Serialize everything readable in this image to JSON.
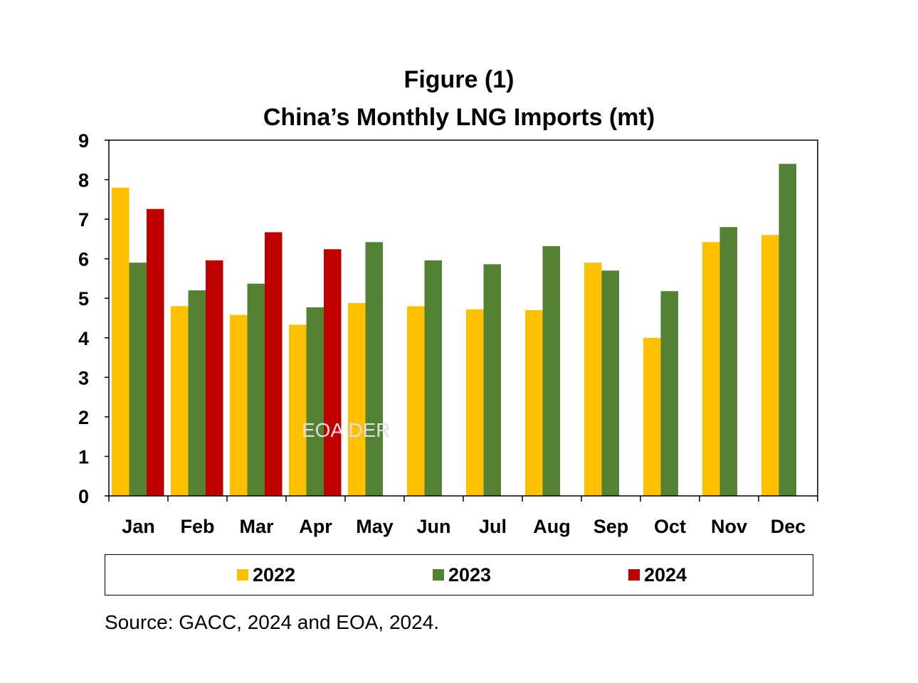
{
  "chart_data": {
    "type": "bar",
    "title": "Figure (1)",
    "subtitle": "China’s Monthly LNG Imports (mt)",
    "categories": [
      "Jan",
      "Feb",
      "Mar",
      "Apr",
      "May",
      "Jun",
      "Jul",
      "Aug",
      "Sep",
      "Oct",
      "Nov",
      "Dec"
    ],
    "series": [
      {
        "name": "2022",
        "color": "#ffc000",
        "values": [
          7.8,
          4.8,
          4.58,
          4.33,
          4.88,
          4.8,
          4.72,
          4.7,
          5.9,
          4.0,
          6.42,
          6.6
        ]
      },
      {
        "name": "2023",
        "color": "#548235",
        "values": [
          5.9,
          5.2,
          5.37,
          4.77,
          6.42,
          5.96,
          5.86,
          6.32,
          5.7,
          5.18,
          6.8,
          8.4
        ]
      },
      {
        "name": "2024",
        "color": "#c00000",
        "values": [
          7.26,
          5.96,
          6.67,
          6.24,
          null,
          null,
          null,
          null,
          null,
          null,
          null,
          null
        ]
      }
    ],
    "ylim": [
      0,
      9
    ],
    "yticks": [
      0,
      1,
      2,
      3,
      4,
      5,
      6,
      7,
      8,
      9
    ],
    "xlabel": "",
    "ylabel": "",
    "grid": false,
    "legend_position": "bottom",
    "watermark": "EOA DER"
  },
  "source_note": "Source: GACC, 2024 and EOA, 2024."
}
